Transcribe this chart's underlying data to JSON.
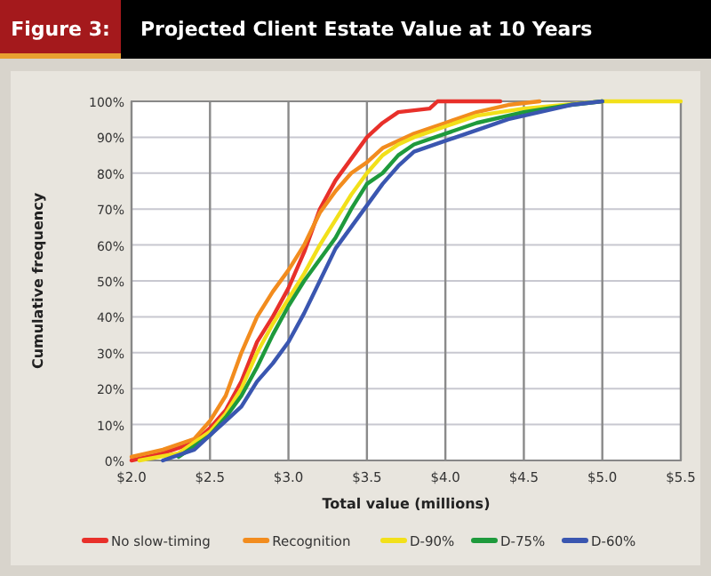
{
  "chart_data": {
    "type": "line",
    "title": "Projected Client Estate Value at 10 Years",
    "annotations": [
      "Figure 3:"
    ],
    "xlabel": "Total value (millions)",
    "ylabel": "Cumulative frequency",
    "xlim": [
      2.0,
      5.5
    ],
    "xticks": [
      {
        "value": 2,
        "label": "$2.0"
      },
      {
        "value": 2.5,
        "label": "$2.5"
      },
      {
        "value": 3,
        "label": "$3.0"
      },
      {
        "value": 3.5,
        "label": "$3.5"
      },
      {
        "value": 4,
        "label": "$4.0"
      },
      {
        "value": 4.5,
        "label": "$4.5"
      },
      {
        "value": 5,
        "label": "$5.0"
      },
      {
        "value": 5.5,
        "label": "$5.5"
      }
    ],
    "ylim": [
      0,
      100
    ],
    "yticks": [
      {
        "value": 0,
        "label": "0%"
      },
      {
        "value": 10,
        "label": "10%"
      },
      {
        "value": 20,
        "label": "20%"
      },
      {
        "value": 30,
        "label": "30%"
      },
      {
        "value": 40,
        "label": "40%"
      },
      {
        "value": 50,
        "label": "50%"
      },
      {
        "value": 60,
        "label": "60%"
      },
      {
        "value": 70,
        "label": "70%"
      },
      {
        "value": 80,
        "label": "80%"
      },
      {
        "value": 90,
        "label": "90%"
      },
      {
        "value": 100,
        "label": "100%"
      }
    ],
    "grid": true,
    "legend": "bottom",
    "line_style": "solid",
    "marker": "none",
    "series": [
      {
        "name": "No slow-timing",
        "color": "#e8302a",
        "x": [
          2.0,
          2.2,
          2.4,
          2.5,
          2.6,
          2.7,
          2.8,
          2.9,
          3.0,
          3.1,
          3.2,
          3.3,
          3.4,
          3.5,
          3.6,
          3.7,
          3.9,
          3.95,
          4.35
        ],
        "values": [
          0,
          2,
          5,
          9,
          14,
          22,
          33,
          40,
          48,
          58,
          70,
          78,
          84,
          90,
          94,
          97,
          98,
          100,
          100
        ]
      },
      {
        "name": "Recognition",
        "color": "#f28c1e",
        "x": [
          2.0,
          2.2,
          2.4,
          2.5,
          2.6,
          2.7,
          2.8,
          2.9,
          3.0,
          3.1,
          3.2,
          3.3,
          3.4,
          3.5,
          3.6,
          3.8,
          4.0,
          4.2,
          4.4,
          4.6
        ],
        "values": [
          1,
          3,
          6,
          11,
          18,
          30,
          40,
          47,
          53,
          60,
          69,
          75,
          80,
          83,
          87,
          91,
          94,
          97,
          99,
          100
        ]
      },
      {
        "name": "D-90%",
        "color": "#f2e01a",
        "x": [
          2.05,
          2.3,
          2.5,
          2.6,
          2.7,
          2.8,
          2.9,
          3.0,
          3.1,
          3.2,
          3.3,
          3.4,
          3.5,
          3.6,
          3.7,
          3.8,
          4.0,
          4.2,
          4.5,
          5.0,
          5.5
        ],
        "values": [
          0,
          2,
          8,
          13,
          20,
          30,
          38,
          45,
          52,
          60,
          67,
          74,
          80,
          85,
          88,
          90,
          93,
          96,
          98,
          100,
          100
        ]
      },
      {
        "name": "D-75%",
        "color": "#1e9a3c",
        "x": [
          2.3,
          2.5,
          2.6,
          2.7,
          2.8,
          2.9,
          3.0,
          3.1,
          3.2,
          3.3,
          3.4,
          3.5,
          3.6,
          3.7,
          3.8,
          4.0,
          4.2,
          4.5,
          4.8,
          5.0
        ],
        "values": [
          1,
          7,
          12,
          18,
          26,
          35,
          43,
          50,
          56,
          62,
          70,
          77,
          80,
          85,
          88,
          91,
          94,
          97,
          99,
          100
        ]
      },
      {
        "name": "D-60%",
        "color": "#3a56b0",
        "x": [
          2.2,
          2.4,
          2.5,
          2.6,
          2.7,
          2.8,
          2.9,
          3.0,
          3.1,
          3.2,
          3.3,
          3.4,
          3.5,
          3.6,
          3.7,
          3.8,
          4.0,
          4.2,
          4.4,
          4.6,
          4.8,
          5.0
        ],
        "values": [
          0,
          3,
          7,
          11,
          15,
          22,
          27,
          33,
          41,
          50,
          59,
          65,
          71,
          77,
          82,
          86,
          89,
          92,
          95,
          97,
          99,
          100
        ]
      }
    ]
  }
}
